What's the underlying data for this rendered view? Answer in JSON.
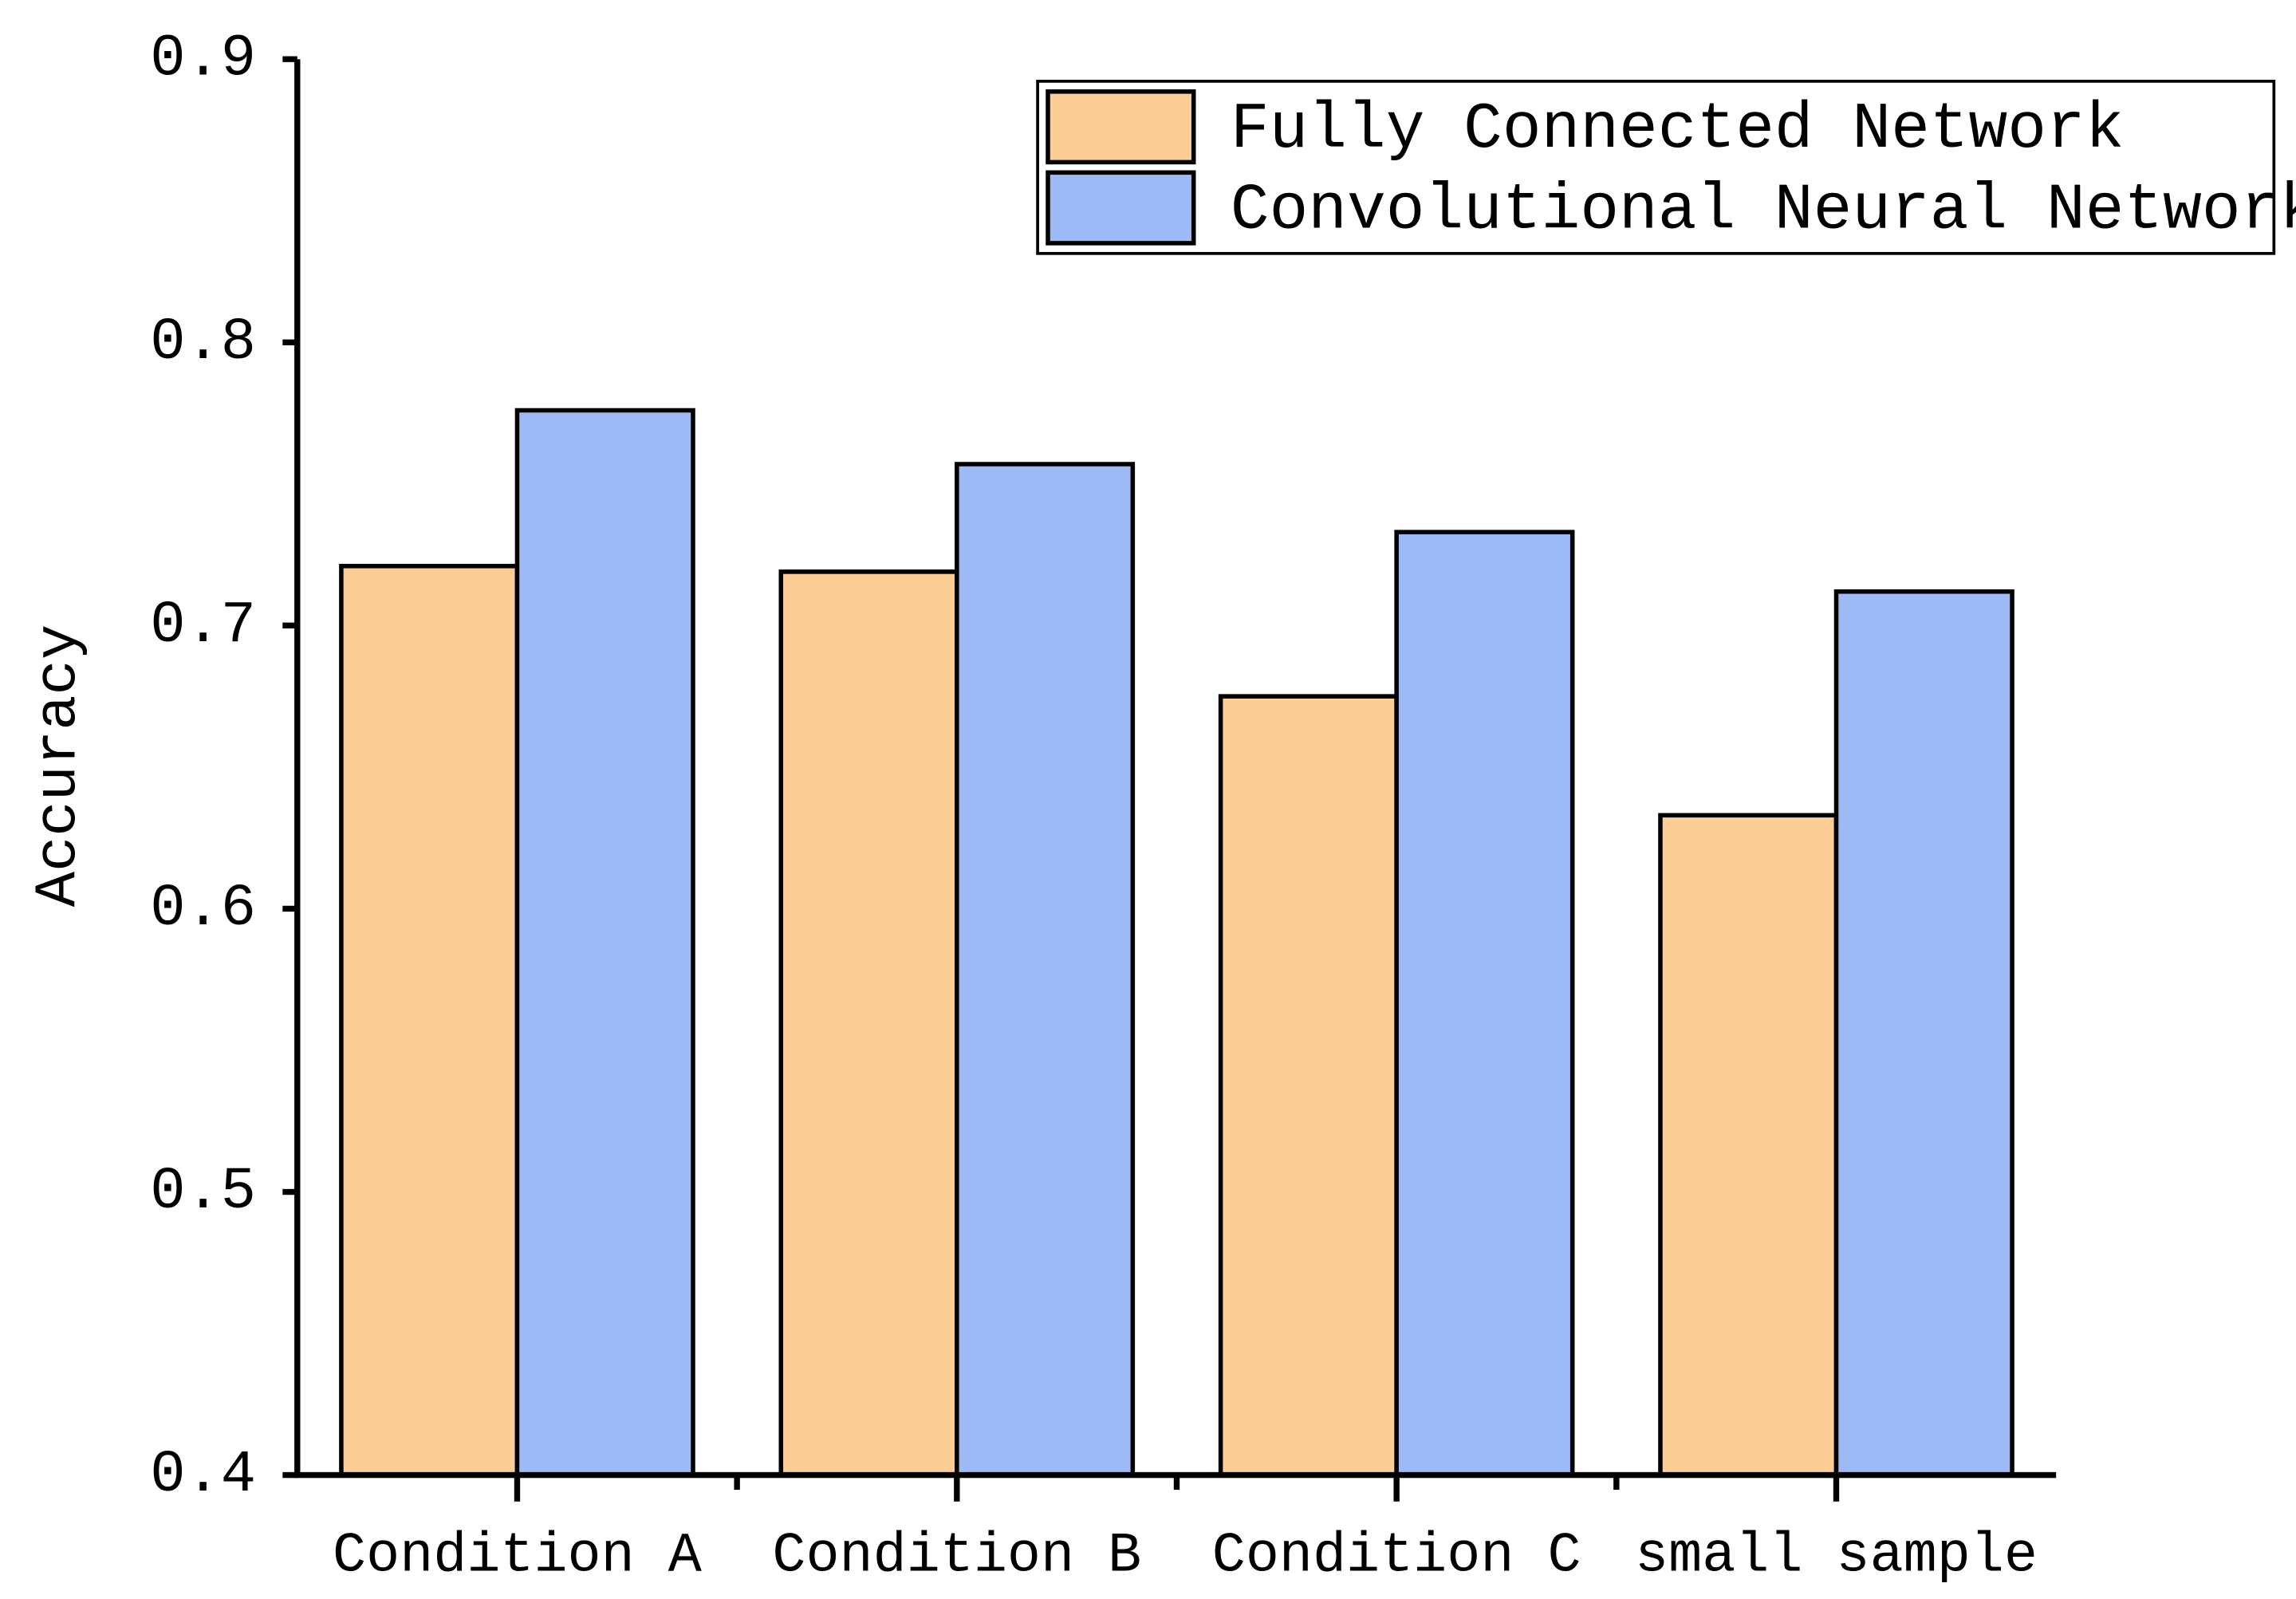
{
  "chart_data": {
    "type": "bar",
    "ylabel": "Accuracy",
    "categories": [
      "Condition A",
      "Condition B",
      "Condition C",
      "small sample"
    ],
    "series": [
      {
        "name": "Fully Connected Network",
        "color": "#fdcd96",
        "values": [
          0.721,
          0.719,
          0.675,
          0.633
        ]
      },
      {
        "name": "Convolutional Neural Network",
        "color": "#9ebaf6",
        "values": [
          0.776,
          0.757,
          0.733,
          0.712
        ]
      }
    ],
    "ylim": [
      0.4,
      0.9
    ],
    "yticks": [
      {
        "value": 0.4,
        "label": "0.4"
      },
      {
        "value": 0.5,
        "label": "0.5"
      },
      {
        "value": 0.6,
        "label": "0.6"
      },
      {
        "value": 0.7,
        "label": "0.7"
      },
      {
        "value": 0.8,
        "label": "0.8"
      },
      {
        "value": 0.9,
        "label": "0.9"
      }
    ],
    "grid": false,
    "legend": "top-right"
  }
}
